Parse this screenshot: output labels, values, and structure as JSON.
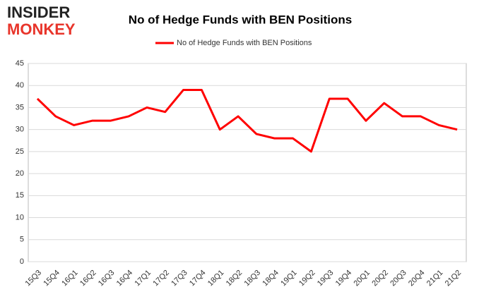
{
  "logo": [
    "INSIDER",
    "MONKEY"
  ],
  "chart_data": {
    "type": "line",
    "title": "No of Hedge Funds with BEN Positions",
    "categories": [
      "15Q3",
      "15Q4",
      "16Q1",
      "16Q2",
      "16Q3",
      "16Q4",
      "17Q1",
      "17Q2",
      "17Q3",
      "17Q4",
      "18Q1",
      "18Q2",
      "18Q3",
      "18Q4",
      "19Q1",
      "19Q2",
      "19Q3",
      "19Q4",
      "20Q1",
      "20Q2",
      "20Q3",
      "20Q4",
      "21Q1",
      "21Q2"
    ],
    "series": [
      {
        "name": "No of Hedge Funds with BEN Positions",
        "color": "#ff0000",
        "values": [
          37,
          33,
          31,
          32,
          32,
          33,
          35,
          34,
          39,
          39,
          30,
          33,
          29,
          28,
          28,
          25,
          37,
          37,
          32,
          36,
          33,
          33,
          31,
          30
        ]
      }
    ],
    "ylim": [
      0,
      45
    ],
    "yticks": [
      0,
      5,
      10,
      15,
      20,
      25,
      30,
      35,
      40,
      45
    ],
    "grid": true,
    "legend": "top"
  }
}
